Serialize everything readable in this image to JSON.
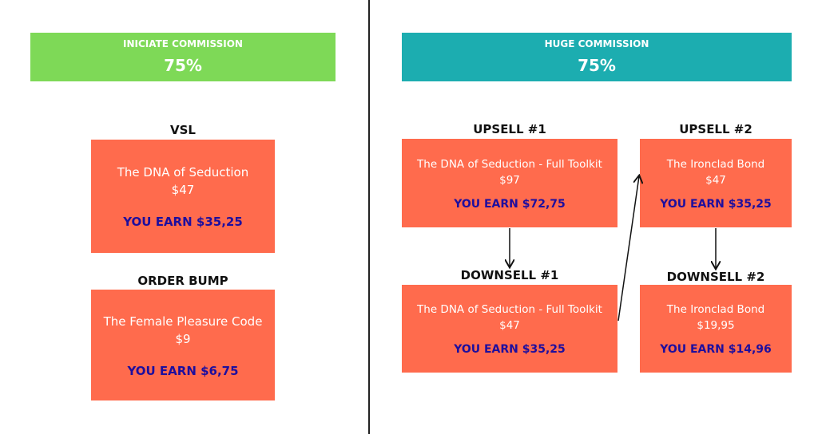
{
  "left": {
    "banner": {
      "title": "INICIATE COMMISSION",
      "percent": "75%",
      "color": "#7ED957"
    },
    "vsl": {
      "label": "VSL",
      "name": "The DNA of Seduction",
      "price": "$47",
      "earn": "YOU EARN $35,25"
    },
    "order_bump": {
      "label": "ORDER BUMP",
      "name": "The Female Pleasure Code",
      "price": "$9",
      "earn": "YOU EARN $6,75"
    }
  },
  "right": {
    "banner": {
      "title": "HUGE COMMISSION",
      "percent": "75%",
      "color": "#1CADB0"
    },
    "upsell1": {
      "label": "UPSELL #1",
      "name": "The DNA of Seduction - Full Toolkit",
      "price": "$97",
      "earn": "YOU EARN $72,75"
    },
    "downsell1": {
      "label": "DOWNSELL #1",
      "name": "The DNA of Seduction - Full Toolkit",
      "price": "$47",
      "earn": "YOU EARN $35,25"
    },
    "upsell2": {
      "label": "UPSELL #2",
      "name": "The Ironclad Bond",
      "price": "$47",
      "earn": "YOU EARN $35,25"
    },
    "downsell2": {
      "label": "DOWNSELL #2",
      "name": "The Ironclad Bond",
      "price": "$19,95",
      "earn": "YOU EARN $14,96"
    }
  },
  "colors": {
    "card": "#FF6B4D",
    "earn_text": "#1E0E9E"
  }
}
